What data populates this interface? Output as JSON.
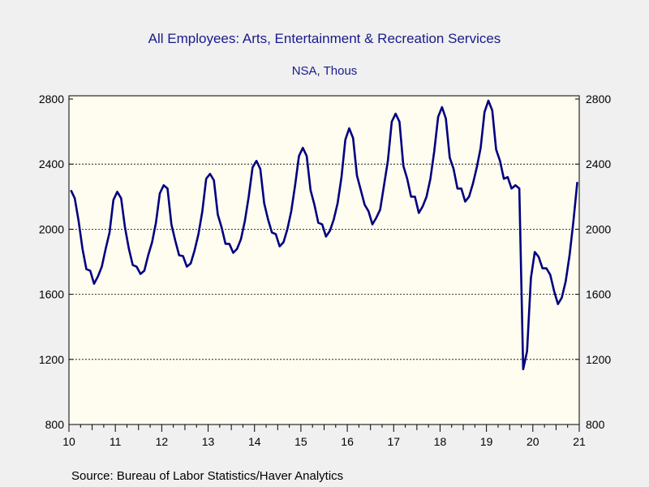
{
  "chart_data": {
    "type": "line",
    "title": "All Employees: Arts, Entertainment & Recreation Services",
    "subtitle": "NSA, Thous",
    "source": "Source:  Bureau of Labor Statistics/Haver Analytics",
    "xlabel": "",
    "ylabel": "",
    "x_tick_labels": [
      "10",
      "11",
      "12",
      "13",
      "14",
      "15",
      "16",
      "17",
      "18",
      "19",
      "20",
      "21"
    ],
    "y_ticks": [
      800,
      1200,
      1600,
      2000,
      2400,
      2800
    ],
    "ylim": [
      800,
      2820
    ],
    "xlim": [
      2010.0,
      2021.0
    ],
    "grid": "horizontal dashed",
    "colors": {
      "line": "#000080",
      "plot_bg": "#fffcf0",
      "title": "#1a1a8c",
      "page_bg": "#f0f0f0"
    },
    "series": [
      {
        "start_year": 2010,
        "frequency": "monthly",
        "values": [
          2240,
          2190,
          2050,
          1880,
          1755,
          1745,
          1665,
          1710,
          1770,
          1880,
          1980,
          2180,
          2230,
          2190,
          2010,
          1880,
          1780,
          1770,
          1725,
          1745,
          1840,
          1920,
          2040,
          2220,
          2270,
          2250,
          2030,
          1930,
          1840,
          1835,
          1770,
          1790,
          1870,
          1970,
          2110,
          2310,
          2340,
          2300,
          2090,
          2010,
          1910,
          1910,
          1855,
          1880,
          1940,
          2050,
          2200,
          2380,
          2420,
          2370,
          2160,
          2060,
          1980,
          1970,
          1895,
          1920,
          2000,
          2110,
          2270,
          2450,
          2500,
          2450,
          2240,
          2150,
          2040,
          2030,
          1955,
          1990,
          2060,
          2160,
          2320,
          2550,
          2620,
          2560,
          2330,
          2240,
          2150,
          2110,
          2030,
          2070,
          2120,
          2270,
          2420,
          2660,
          2710,
          2660,
          2390,
          2310,
          2200,
          2200,
          2100,
          2140,
          2200,
          2310,
          2480,
          2690,
          2750,
          2680,
          2440,
          2370,
          2250,
          2250,
          2170,
          2200,
          2280,
          2380,
          2500,
          2720,
          2790,
          2730,
          2490,
          2420,
          2310,
          2320,
          2250,
          2270,
          2250,
          1140,
          1250,
          1700,
          1860,
          1830,
          1760,
          1760,
          1720,
          1620,
          1540,
          1580,
          1680,
          1840,
          2050,
          2290
        ]
      }
    ]
  }
}
